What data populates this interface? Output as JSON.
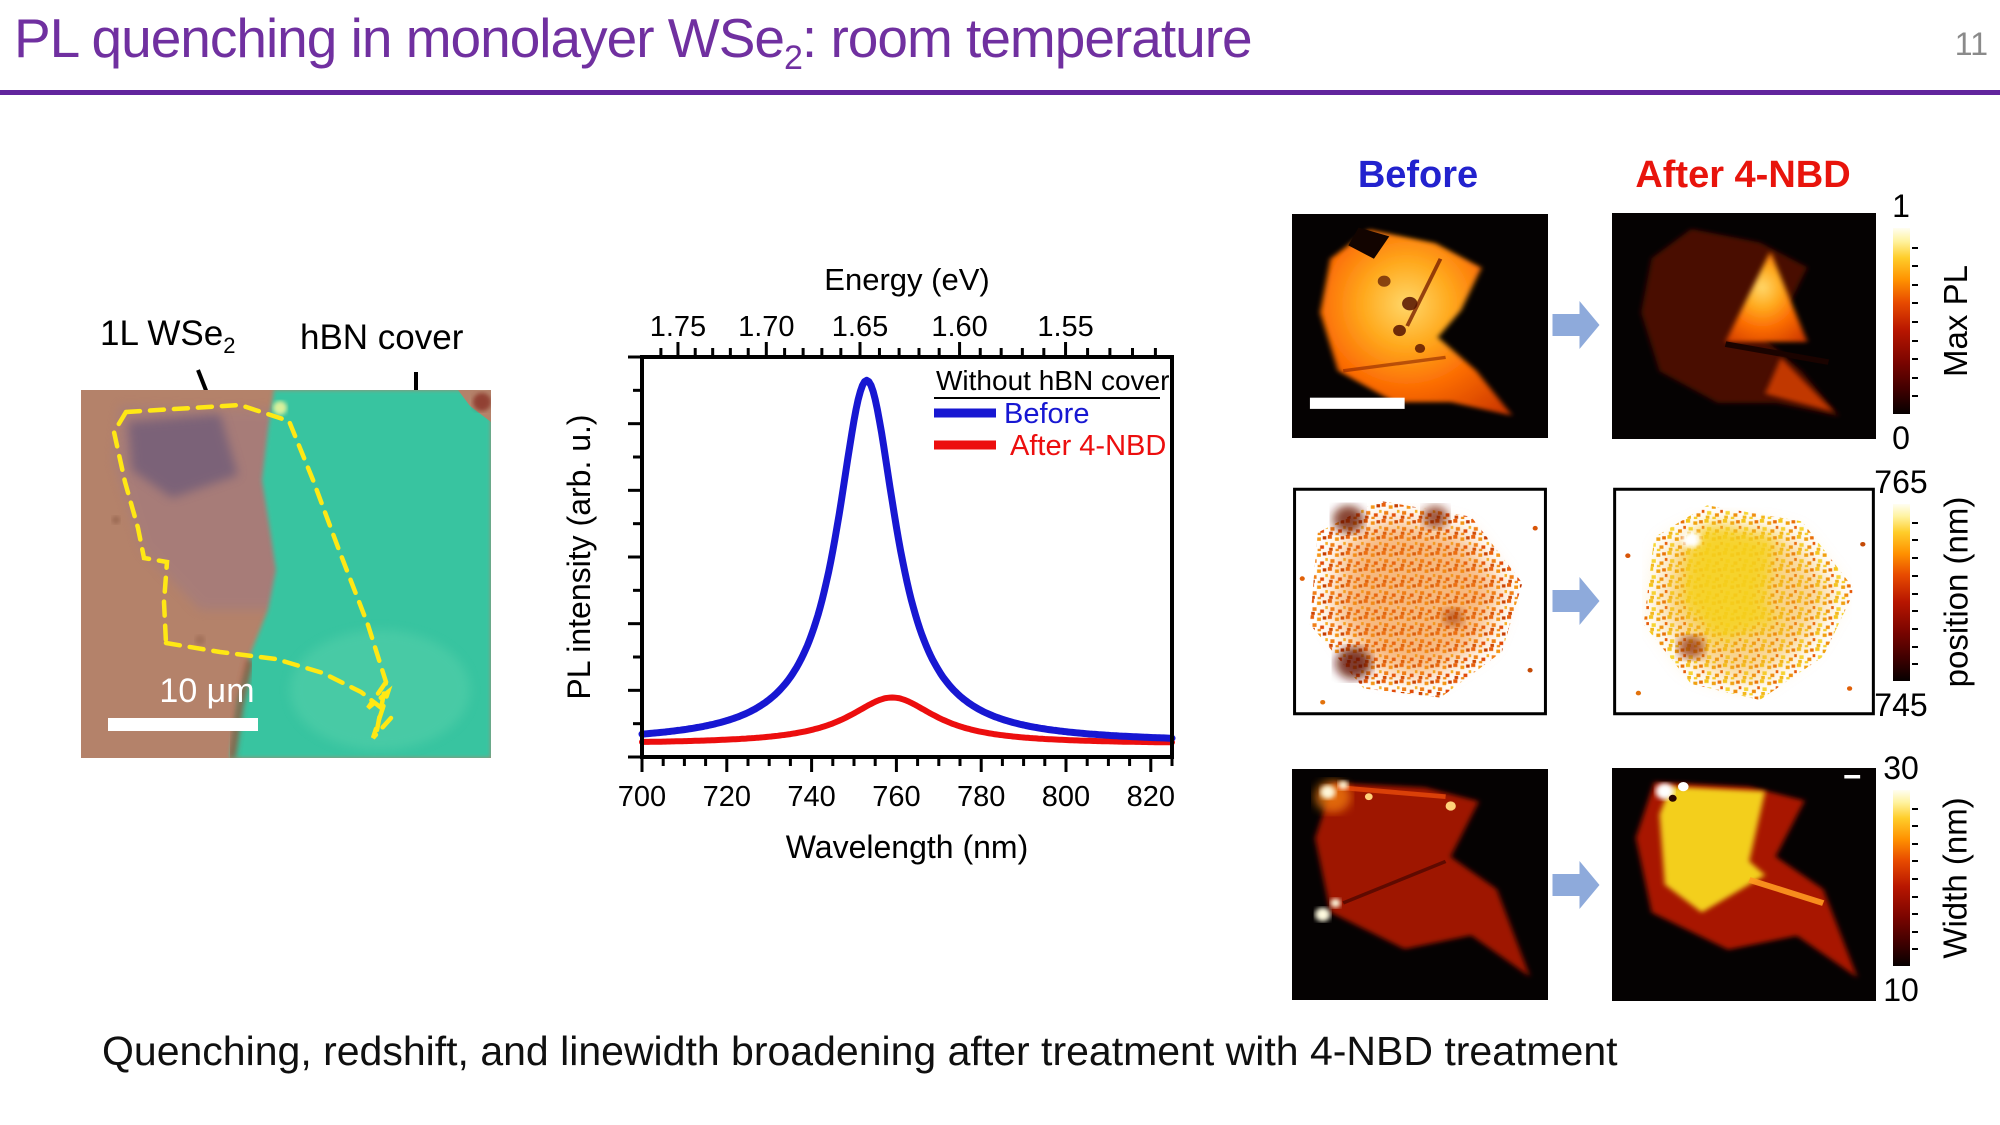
{
  "slide": {
    "title_main": "PL quenching in monolayer WSe",
    "title_sub": "2",
    "title_tail": ": room temperature",
    "page_number": "11",
    "accent_color": "#7030A0",
    "caption": "Quenching, redshift, and linewidth broadening after treatment with 4-NBD treatment"
  },
  "micrograph": {
    "flake_label_main": "1L WSe",
    "flake_label_sub": "2",
    "cover_label": "hBN cover",
    "scale_bar_text": "10 μm"
  },
  "chart_data": {
    "type": "line",
    "top_axis": {
      "label": "Energy (eV)",
      "ticks": [
        "1.75",
        "1.70",
        "1.65",
        "1.60",
        "1.55"
      ]
    },
    "x_axis": {
      "label": "Wavelength (nm)",
      "ticks": [
        700,
        720,
        740,
        760,
        780,
        800,
        820
      ],
      "range": [
        700,
        825
      ]
    },
    "y_axis": {
      "label": "PL intensity (arb. u.)",
      "range_rel": [
        0,
        1
      ]
    },
    "legend": {
      "title": "Without hBN cover",
      "entries": [
        {
          "label": "Before",
          "color": "#1717d2"
        },
        {
          "label": "After 4-NBD",
          "color": "#ec0e0e"
        }
      ],
      "position": "top-right"
    },
    "series": [
      {
        "name": "Before",
        "color": "#1717d2",
        "peak_nm": 753,
        "peak_intensity_rel": 0.96,
        "hwhm_nm": 8.5,
        "baseline_rel": 0.01,
        "x_nm": [
          700,
          705,
          710,
          715,
          720,
          725,
          730,
          735,
          740,
          745,
          750,
          755,
          760,
          765,
          770,
          775,
          780,
          785,
          790,
          795,
          800,
          805,
          810,
          815,
          820,
          825
        ],
        "y_rel": [
          0.03,
          0.04,
          0.05,
          0.06,
          0.07,
          0.09,
          0.12,
          0.18,
          0.29,
          0.51,
          0.85,
          0.91,
          0.58,
          0.34,
          0.2,
          0.13,
          0.1,
          0.07,
          0.06,
          0.05,
          0.04,
          0.04,
          0.03,
          0.03,
          0.03,
          0.02
        ]
      },
      {
        "name": "After 4-NBD",
        "color": "#ec0e0e",
        "peak_nm": 759,
        "peak_intensity_rel": 0.123,
        "hwhm_nm": 12.5,
        "baseline_rel": 0.008,
        "x_nm": [
          700,
          705,
          710,
          715,
          720,
          725,
          730,
          735,
          740,
          745,
          750,
          755,
          760,
          765,
          770,
          775,
          780,
          785,
          790,
          795,
          800,
          805,
          810,
          815,
          820,
          825
        ],
        "y_rel": [
          0.01,
          0.01,
          0.01,
          0.02,
          0.02,
          0.02,
          0.03,
          0.03,
          0.04,
          0.06,
          0.08,
          0.11,
          0.12,
          0.1,
          0.07,
          0.05,
          0.04,
          0.03,
          0.02,
          0.02,
          0.02,
          0.02,
          0.01,
          0.01,
          0.01,
          0.01
        ]
      }
    ],
    "grid": false
  },
  "maps": {
    "col_headers": [
      {
        "label": "Before",
        "color": "#2222ce"
      },
      {
        "label": "After 4-NBD",
        "color": "#e8140c"
      }
    ],
    "arrow": {
      "icon": "right-block-arrow",
      "color": "#8EAADB"
    },
    "colorbar_gradient": [
      "#000000",
      "#7b0500",
      "#e84b00",
      "#ff9100",
      "#ffcd2a",
      "#fffef2"
    ],
    "rows": [
      {
        "name": "max-pl",
        "colorbar": {
          "top": "1",
          "bottom": "0",
          "label": "Max PL"
        }
      },
      {
        "name": "position",
        "colorbar": {
          "top": "765",
          "bottom": "745",
          "label": "position (nm)"
        }
      },
      {
        "name": "width",
        "colorbar": {
          "top": "30",
          "bottom": "10",
          "label": "Width (nm)"
        }
      }
    ]
  }
}
